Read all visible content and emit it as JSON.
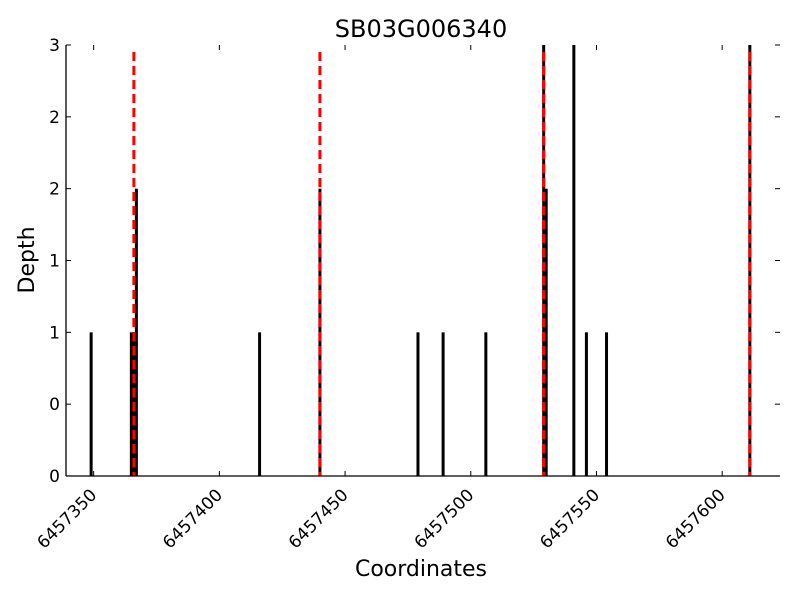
{
  "chart_data": {
    "type": "bar",
    "title": "SB03G006340",
    "xlabel": "Coordinates",
    "ylabel": "Depth",
    "xlim": [
      6457339,
      6457623
    ],
    "ylim": [
      0,
      3
    ],
    "x_ticks": [
      6457350,
      6457400,
      6457450,
      6457500,
      6457550,
      6457600
    ],
    "y_ticks": [
      0,
      0.5,
      1,
      1.5,
      2,
      2.5,
      3
    ],
    "y_tick_labels": [
      "0",
      "0",
      "1",
      "1",
      "2",
      "2",
      "3"
    ],
    "grid": false,
    "series": [
      {
        "type": "bar",
        "color": "#000000",
        "x": [
          6457349,
          6457365,
          6457366,
          6457367,
          6457416,
          6457440,
          6457479,
          6457489,
          6457506,
          6457529,
          6457530,
          6457541,
          6457546,
          6457554,
          6457611
        ],
        "values": [
          1,
          1,
          1,
          2,
          1,
          2,
          1,
          1,
          1,
          3,
          2,
          3,
          1,
          1,
          3
        ]
      }
    ],
    "reference_lines": {
      "color": "#ff0000",
      "style": "dashed",
      "x": [
        6457366,
        6457440,
        6457529,
        6457611
      ]
    }
  }
}
